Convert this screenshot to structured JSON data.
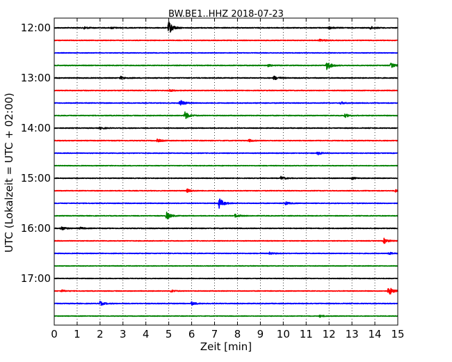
{
  "chart_data": {
    "type": "line",
    "title": "BW.BE1..HHZ 2018-07-23",
    "xlabel": "Zeit  [min]",
    "ylabel": "UTC (Lokalzeit = UTC + 02:00)",
    "xlim": [
      0,
      15
    ],
    "x_ticks": [
      "0",
      "1",
      "2",
      "3",
      "4",
      "5",
      "6",
      "7",
      "8",
      "9",
      "10",
      "11",
      "12",
      "13",
      "14",
      "15"
    ],
    "y_ticks": [
      "12:00",
      "13:00",
      "14:00",
      "15:00",
      "16:00",
      "17:00"
    ],
    "grid": true,
    "trace_colors": [
      "#000000",
      "#ff0000",
      "#0000ff",
      "#008000"
    ],
    "series": [
      {
        "start": "12:00",
        "color": "#000000",
        "amplitude": 0.55,
        "events": [
          {
            "t": 1.3,
            "a": 0.4
          },
          {
            "t": 2.5,
            "a": 0.3
          },
          {
            "t": 5.0,
            "a": 2.2
          },
          {
            "t": 12.0,
            "a": 0.4
          },
          {
            "t": 13.8,
            "a": 0.5
          }
        ]
      },
      {
        "start": "12:15",
        "color": "#ff0000",
        "amplitude": 0.45,
        "events": [
          {
            "t": 11.6,
            "a": 0.5
          }
        ]
      },
      {
        "start": "12:30",
        "color": "#0000ff",
        "amplitude": 0.4,
        "events": []
      },
      {
        "start": "12:45",
        "color": "#008000",
        "amplitude": 0.5,
        "events": [
          {
            "t": 9.3,
            "a": 0.4
          },
          {
            "t": 11.9,
            "a": 1.6
          },
          {
            "t": 14.7,
            "a": 0.8
          }
        ]
      },
      {
        "start": "13:00",
        "color": "#000000",
        "amplitude": 0.55,
        "events": [
          {
            "t": 2.9,
            "a": 0.5
          },
          {
            "t": 9.6,
            "a": 0.7
          }
        ]
      },
      {
        "start": "13:15",
        "color": "#ff0000",
        "amplitude": 0.5,
        "events": [
          {
            "t": 5.0,
            "a": 0.4
          }
        ]
      },
      {
        "start": "13:30",
        "color": "#0000ff",
        "amplitude": 0.5,
        "events": [
          {
            "t": 5.5,
            "a": 1.1
          },
          {
            "t": 12.5,
            "a": 0.4
          }
        ]
      },
      {
        "start": "13:45",
        "color": "#008000",
        "amplitude": 0.5,
        "events": [
          {
            "t": 5.7,
            "a": 1.4
          },
          {
            "t": 12.7,
            "a": 0.6
          }
        ]
      },
      {
        "start": "14:00",
        "color": "#000000",
        "amplitude": 0.5,
        "events": [
          {
            "t": 2.0,
            "a": 0.4
          }
        ]
      },
      {
        "start": "14:15",
        "color": "#ff0000",
        "amplitude": 0.5,
        "events": [
          {
            "t": 4.5,
            "a": 0.5
          },
          {
            "t": 8.5,
            "a": 0.4
          }
        ]
      },
      {
        "start": "14:30",
        "color": "#0000ff",
        "amplitude": 0.45,
        "events": [
          {
            "t": 11.5,
            "a": 0.6
          }
        ]
      },
      {
        "start": "14:45",
        "color": "#008000",
        "amplitude": 0.4,
        "events": []
      },
      {
        "start": "15:00",
        "color": "#000000",
        "amplitude": 0.45,
        "events": [
          {
            "t": 9.9,
            "a": 0.6
          },
          {
            "t": 13.0,
            "a": 0.4
          }
        ]
      },
      {
        "start": "15:15",
        "color": "#ff0000",
        "amplitude": 0.45,
        "events": [
          {
            "t": 5.8,
            "a": 0.6
          },
          {
            "t": 14.9,
            "a": 0.4
          }
        ]
      },
      {
        "start": "15:30",
        "color": "#0000ff",
        "amplitude": 0.45,
        "events": [
          {
            "t": 7.2,
            "a": 1.8
          },
          {
            "t": 10.1,
            "a": 0.5
          }
        ]
      },
      {
        "start": "15:45",
        "color": "#008000",
        "amplitude": 0.45,
        "events": [
          {
            "t": 4.9,
            "a": 1.3
          },
          {
            "t": 7.9,
            "a": 0.6
          }
        ]
      },
      {
        "start": "16:00",
        "color": "#000000",
        "amplitude": 0.5,
        "events": [
          {
            "t": 0.3,
            "a": 0.7
          },
          {
            "t": 1.1,
            "a": 0.4
          }
        ]
      },
      {
        "start": "16:15",
        "color": "#ff0000",
        "amplitude": 0.45,
        "events": [
          {
            "t": 14.4,
            "a": 0.9
          }
        ]
      },
      {
        "start": "16:30",
        "color": "#0000ff",
        "amplitude": 0.45,
        "events": [
          {
            "t": 9.4,
            "a": 0.4
          },
          {
            "t": 14.6,
            "a": 0.4
          }
        ]
      },
      {
        "start": "16:45",
        "color": "#008000",
        "amplitude": 0.4,
        "events": []
      },
      {
        "start": "17:00",
        "color": "#000000",
        "amplitude": 0.4,
        "events": []
      },
      {
        "start": "17:15",
        "color": "#ff0000",
        "amplitude": 0.45,
        "events": [
          {
            "t": 0.3,
            "a": 0.4
          },
          {
            "t": 5.1,
            "a": 0.4
          },
          {
            "t": 14.6,
            "a": 1.6
          }
        ]
      },
      {
        "start": "17:30",
        "color": "#0000ff",
        "amplitude": 0.5,
        "events": [
          {
            "t": 2.0,
            "a": 0.7
          },
          {
            "t": 6.0,
            "a": 0.6
          }
        ]
      },
      {
        "start": "17:45",
        "color": "#008000",
        "amplitude": 0.4,
        "events": [
          {
            "t": 11.6,
            "a": 0.4
          }
        ]
      }
    ]
  }
}
